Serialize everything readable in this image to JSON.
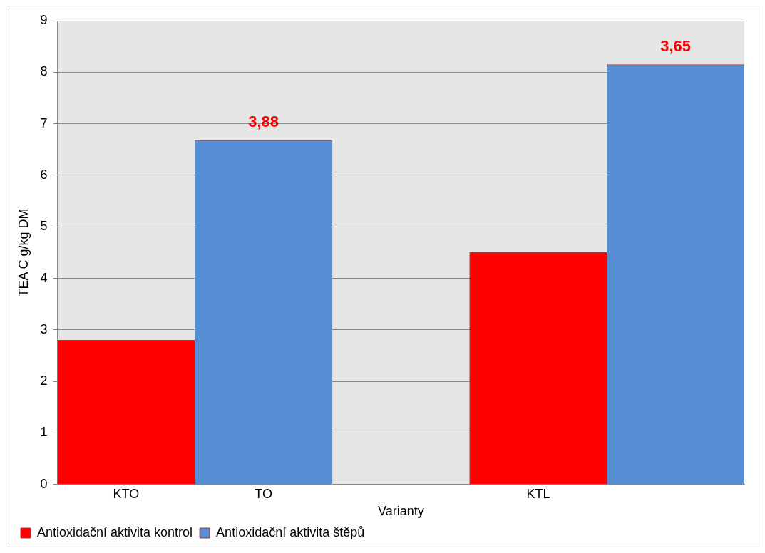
{
  "chart_data": {
    "type": "bar",
    "xlabel": "Varianty",
    "ylabel": "TEA C g/kg DM",
    "categories": [
      "KTO",
      "TO",
      null,
      "KTL",
      null
    ],
    "series": [
      {
        "name": "Antioxidační aktivita kontrol",
        "color": "#ff0000",
        "values": [
          2.8,
          null,
          null,
          4.5,
          null
        ]
      },
      {
        "name": "Antioxidační aktivita štěpů",
        "color": "#558ed5",
        "values": [
          null,
          6.68,
          null,
          null,
          8.15
        ]
      }
    ],
    "annotations": [
      {
        "text": "3,88",
        "x": "TO",
        "y": 6.68
      },
      {
        "text": "3,65",
        "y": 8.15
      }
    ],
    "ylim": [
      0,
      9
    ],
    "yticks": [
      0,
      1,
      2,
      3,
      4,
      5,
      6,
      7,
      8,
      9
    ],
    "grid": "y",
    "legend": "bottom"
  }
}
